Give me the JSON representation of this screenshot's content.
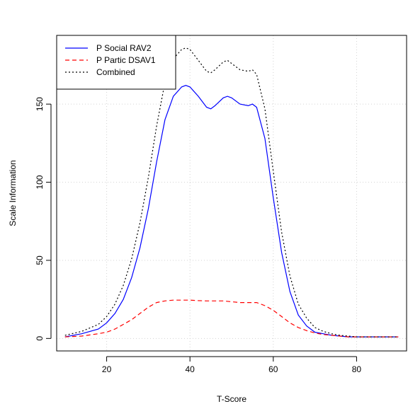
{
  "chart_data": {
    "type": "line",
    "title": "",
    "xlabel": "T-Score",
    "ylabel": "Scale Information",
    "xlim": [
      8,
      92
    ],
    "ylim": [
      -8,
      194
    ],
    "x_ticks": [
      20,
      40,
      60,
      80
    ],
    "y_ticks": [
      0,
      50,
      100,
      150
    ],
    "grid": true,
    "legend_position": "top-left",
    "series": [
      {
        "name": "P Social RAV2",
        "color": "#0000ff",
        "dash": "solid",
        "x": [
          10,
          14,
          18,
          20,
          22,
          24,
          26,
          28,
          30,
          32,
          34,
          36,
          38,
          39,
          40,
          42,
          44,
          45,
          46,
          48,
          49,
          50,
          52,
          54,
          55,
          56,
          58,
          60,
          62,
          64,
          66,
          68,
          70,
          72,
          74,
          76,
          78,
          80,
          84,
          90
        ],
        "y": [
          1,
          3,
          6,
          10,
          16,
          25,
          39,
          58,
          83,
          113,
          140,
          155,
          161,
          162,
          161,
          155,
          148,
          147,
          149,
          154,
          155,
          154,
          150,
          149,
          150,
          148,
          128,
          90,
          55,
          30,
          15,
          8,
          4,
          3,
          2,
          1.5,
          1,
          1,
          1,
          1
        ]
      },
      {
        "name": "P Partic DSAV1",
        "color": "#ff0000",
        "dash": "dashed",
        "x": [
          10,
          14,
          18,
          20,
          22,
          24,
          26,
          28,
          30,
          32,
          34,
          36,
          38,
          40,
          42,
          44,
          46,
          48,
          50,
          52,
          54,
          56,
          58,
          60,
          62,
          64,
          66,
          68,
          70,
          72,
          74,
          76,
          78,
          80,
          84,
          90
        ],
        "y": [
          1,
          1.5,
          3,
          4,
          6,
          9,
          12,
          16,
          20,
          23,
          24,
          24.5,
          24.5,
          24.5,
          24.2,
          24,
          24,
          24,
          23.5,
          23,
          23,
          23,
          21,
          18,
          14,
          10,
          7,
          5,
          3.5,
          2.5,
          2,
          1.5,
          1,
          1,
          1,
          1
        ]
      },
      {
        "name": "Combined",
        "color": "#000000",
        "dash": "dotted",
        "x": [
          10,
          14,
          18,
          20,
          22,
          24,
          26,
          28,
          30,
          32,
          34,
          36,
          38,
          39,
          40,
          42,
          44,
          45,
          46,
          48,
          49,
          50,
          52,
          54,
          55,
          56,
          58,
          60,
          62,
          64,
          66,
          68,
          70,
          72,
          74,
          76,
          78,
          80,
          84,
          90
        ],
        "y": [
          2,
          4.5,
          9,
          14,
          22,
          34,
          51,
          74,
          103,
          136,
          164,
          179,
          185,
          186,
          185,
          178,
          171,
          170,
          172,
          177,
          178,
          176,
          172,
          171,
          172,
          169,
          147,
          107,
          68,
          40,
          22,
          13,
          7,
          4.5,
          3,
          2,
          1.5,
          1,
          1,
          1
        ]
      }
    ]
  }
}
